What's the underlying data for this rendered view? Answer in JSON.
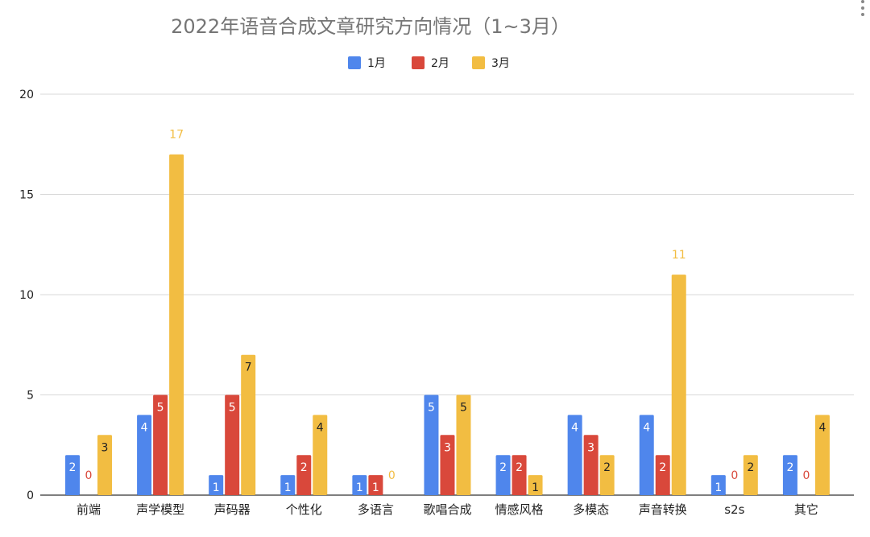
{
  "chart_data": {
    "type": "bar",
    "title": "2022年语音合成文章研究方向情况（1~3月）",
    "xlabel": "",
    "ylabel": "",
    "ylim": [
      0,
      20
    ],
    "yticks": [
      0,
      5,
      10,
      15,
      20
    ],
    "grid": true,
    "legend_position": "top",
    "categories": [
      "前端",
      "声学模型",
      "声码器",
      "个性化",
      "多语言",
      "歌唱合成",
      "情感风格",
      "多模态",
      "声音转换",
      "s2s",
      "其它"
    ],
    "series": [
      {
        "name": "1月",
        "color": "#4f86ec",
        "values": [
          2,
          4,
          1,
          1,
          1,
          5,
          2,
          4,
          4,
          1,
          2
        ]
      },
      {
        "name": "2月",
        "color": "#d9483b",
        "values": [
          0,
          5,
          5,
          2,
          1,
          3,
          2,
          3,
          2,
          0,
          0
        ]
      },
      {
        "name": "3月",
        "color": "#f2bd42",
        "values": [
          3,
          17,
          7,
          4,
          0,
          5,
          1,
          2,
          11,
          2,
          4
        ]
      }
    ]
  }
}
